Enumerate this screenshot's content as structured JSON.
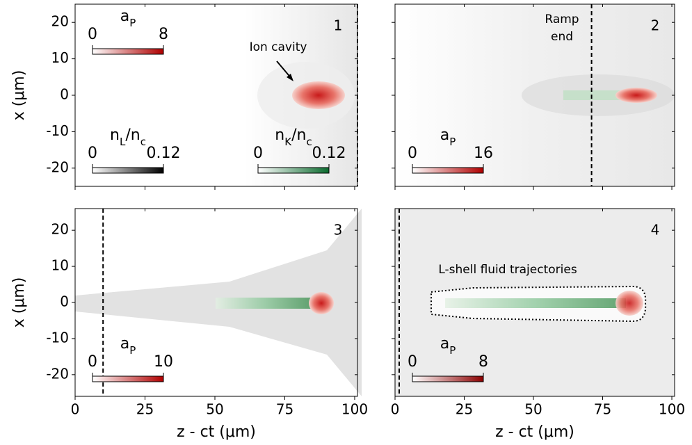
{
  "chart_data": [
    {
      "type": "image",
      "panel_label": "1",
      "ylabel": "x (μm)",
      "xlim": [
        0,
        101
      ],
      "ylim": [
        -25,
        25
      ],
      "xticks": [
        0,
        25,
        50,
        75,
        100
      ],
      "yticks": [
        -20,
        -10,
        0,
        10,
        20
      ],
      "vlines": [
        101
      ],
      "colorbars": [
        {
          "label": [
            "a",
            "P"
          ],
          "lim": [
            0,
            8
          ],
          "ticks": [
            0,
            8
          ],
          "color": "#b00000"
        },
        {
          "label": [
            "n",
            "L",
            "/n",
            "c"
          ],
          "lim": [
            0,
            0.12
          ],
          "ticks": [
            0,
            0.12
          ],
          "color": "#000000"
        },
        {
          "label": [
            "n",
            "K",
            "/n",
            "c"
          ],
          "lim": [
            0,
            0.12
          ],
          "ticks": [
            0,
            0.12
          ],
          "color": "#0b6b2e"
        }
      ],
      "annotations": [
        [
          "Ion cavity"
        ]
      ]
    },
    {
      "type": "image",
      "panel_label": "2",
      "xlim": [
        0,
        101
      ],
      "ylim": [
        -25,
        25
      ],
      "xticks": [
        0,
        25,
        50,
        75,
        100
      ],
      "yticks": [
        -20,
        -10,
        0,
        10,
        20
      ],
      "vlines": [
        71
      ],
      "colorbars": [
        {
          "label": [
            "a",
            "P"
          ],
          "lim": [
            0,
            16
          ],
          "ticks": [
            0,
            16
          ],
          "color": "#b00000"
        }
      ],
      "annotations": [
        [
          "Ramp",
          "end"
        ]
      ]
    },
    {
      "type": "image",
      "panel_label": "3",
      "ylabel": "x (μm)",
      "xlabel": "z - ct (μm)",
      "xlim": [
        0,
        101
      ],
      "ylim": [
        -26,
        26
      ],
      "xticks": [
        0,
        25,
        50,
        75,
        100
      ],
      "yticks": [
        -20,
        -10,
        0,
        10,
        20
      ],
      "vlines": [
        10
      ],
      "colorbars": [
        {
          "label": [
            "a",
            "P"
          ],
          "lim": [
            0,
            10
          ],
          "ticks": [
            0,
            10
          ],
          "color": "#b00000"
        }
      ],
      "annotations": []
    },
    {
      "type": "image",
      "panel_label": "4",
      "xlabel": "z - ct (μm)",
      "xlim": [
        0,
        101
      ],
      "ylim": [
        -26,
        26
      ],
      "xticks": [
        0,
        25,
        50,
        75,
        100
      ],
      "yticks": [
        -20,
        -10,
        0,
        10,
        20
      ],
      "vlines": [
        1.5
      ],
      "colorbars": [
        {
          "label": [
            "a",
            "P"
          ],
          "lim": [
            0,
            8
          ],
          "ticks": [
            0,
            8
          ],
          "color": "#8b0000"
        }
      ],
      "annotations": [
        [
          "L-shell fluid trajectories"
        ]
      ]
    }
  ]
}
